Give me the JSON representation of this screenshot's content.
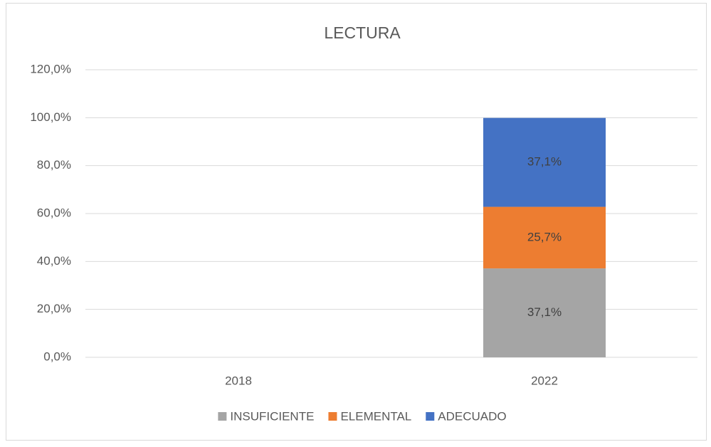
{
  "chart_data": {
    "type": "stacked_bar",
    "title": "LECTURA",
    "categories": [
      "2018",
      "2022"
    ],
    "series": [
      {
        "name": "INSUFICIENTE",
        "color": "#a5a5a5",
        "values": [
          null,
          37.1
        ],
        "value_labels": [
          null,
          "37,1%"
        ]
      },
      {
        "name": "ELEMENTAL",
        "color": "#ed7d31",
        "values": [
          null,
          25.7
        ],
        "value_labels": [
          null,
          "25,7%"
        ]
      },
      {
        "name": "ADECUADO",
        "color": "#4472c4",
        "values": [
          null,
          37.1
        ],
        "value_labels": [
          null,
          "37,1%"
        ]
      }
    ],
    "ylim": [
      0,
      120
    ],
    "yticks": [
      {
        "value": 0,
        "label": "0,0%"
      },
      {
        "value": 20,
        "label": "20,0%"
      },
      {
        "value": 40,
        "label": "40,0%"
      },
      {
        "value": 60,
        "label": "60,0%"
      },
      {
        "value": 80,
        "label": "80,0%"
      },
      {
        "value": 100,
        "label": "100,0%"
      },
      {
        "value": 120,
        "label": "120,0%"
      }
    ],
    "grid": true,
    "legend": "bottom"
  }
}
